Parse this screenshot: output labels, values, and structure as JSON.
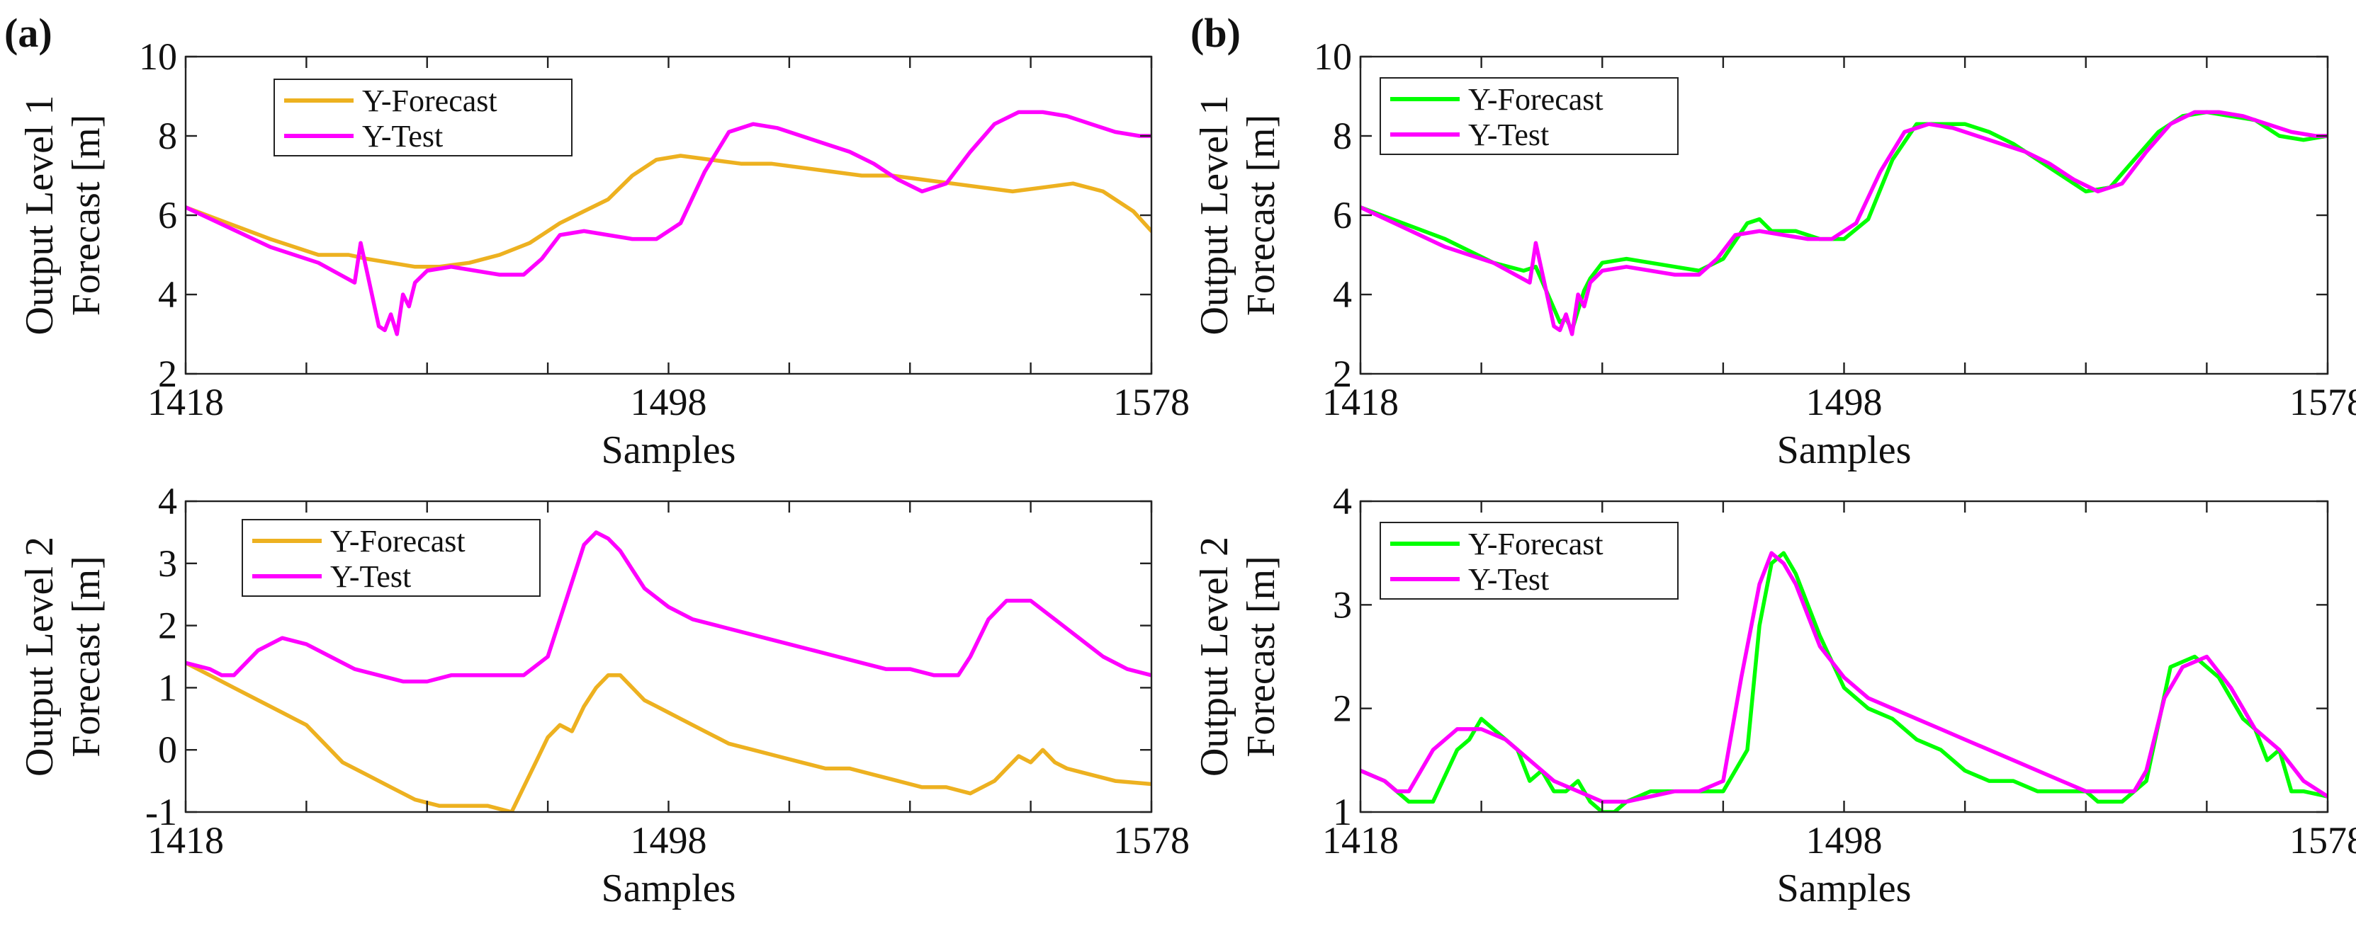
{
  "panels": [
    {
      "label": "(a)"
    },
    {
      "label": "(b)"
    }
  ],
  "chart_data": [
    {
      "type": "line",
      "panel": "(a)",
      "xlabel": "Samples",
      "ylabel": [
        "Output Level 1",
        "Forecast [m]"
      ],
      "xlim": [
        1418,
        1578
      ],
      "ylim": [
        2,
        10
      ],
      "xticks": [
        1418,
        1498,
        1578
      ],
      "xtick_labels": [
        "1418",
        "",
        "1498",
        "",
        "1578"
      ],
      "yticks": [
        2,
        4,
        6,
        8,
        10
      ],
      "ytick_labels": [
        "2",
        "4",
        "6",
        "8",
        "10"
      ],
      "minor_xticks": [
        1438,
        1458,
        1478,
        1518,
        1538,
        1558
      ],
      "legend_position": "top-left",
      "series": [
        {
          "name": "Y-Forecast",
          "color": "#EDB120",
          "x": [
            1418,
            1425,
            1432,
            1440,
            1445,
            1448,
            1452,
            1456,
            1460,
            1465,
            1470,
            1475,
            1480,
            1484,
            1488,
            1492,
            1496,
            1500,
            1505,
            1510,
            1515,
            1520,
            1525,
            1530,
            1535,
            1540,
            1545,
            1550,
            1555,
            1560,
            1565,
            1570,
            1575,
            1578
          ],
          "y": [
            6.2,
            5.8,
            5.4,
            5.0,
            5.0,
            4.9,
            4.8,
            4.7,
            4.7,
            4.8,
            5.0,
            5.3,
            5.8,
            6.1,
            6.4,
            7.0,
            7.4,
            7.5,
            7.4,
            7.3,
            7.3,
            7.2,
            7.1,
            7.0,
            7.0,
            6.9,
            6.8,
            6.7,
            6.6,
            6.7,
            6.8,
            6.6,
            6.1,
            5.6
          ]
        },
        {
          "name": "Y-Test",
          "color": "#FF00FF",
          "x": [
            1418,
            1425,
            1432,
            1440,
            1446,
            1447,
            1448,
            1450,
            1451,
            1452,
            1453,
            1454,
            1455,
            1456,
            1458,
            1462,
            1466,
            1470,
            1474,
            1477,
            1480,
            1484,
            1488,
            1492,
            1496,
            1500,
            1504,
            1508,
            1512,
            1516,
            1520,
            1524,
            1528,
            1532,
            1536,
            1540,
            1544,
            1548,
            1552,
            1556,
            1560,
            1564,
            1568,
            1572,
            1576,
            1578
          ],
          "y": [
            6.2,
            5.7,
            5.2,
            4.8,
            4.3,
            5.3,
            4.6,
            3.2,
            3.1,
            3.5,
            3.0,
            4.0,
            3.7,
            4.3,
            4.6,
            4.7,
            4.6,
            4.5,
            4.5,
            4.9,
            5.5,
            5.6,
            5.5,
            5.4,
            5.4,
            5.8,
            7.1,
            8.1,
            8.3,
            8.2,
            8.0,
            7.8,
            7.6,
            7.3,
            6.9,
            6.6,
            6.8,
            7.6,
            8.3,
            8.6,
            8.6,
            8.5,
            8.3,
            8.1,
            8.0,
            8.0
          ]
        }
      ]
    },
    {
      "type": "line",
      "panel": "(b)",
      "xlabel": "Samples",
      "ylabel": [
        "Output Level 1",
        "Forecast [m]"
      ],
      "xlim": [
        1418,
        1578
      ],
      "ylim": [
        2,
        10
      ],
      "xticks": [
        1418,
        1498,
        1578
      ],
      "xtick_labels": [
        "1418",
        "",
        "1498",
        "",
        "1578"
      ],
      "yticks": [
        2,
        4,
        6,
        8,
        10
      ],
      "ytick_labels": [
        "2",
        "4",
        "6",
        "8",
        "10"
      ],
      "minor_xticks": [
        1438,
        1458,
        1478,
        1518,
        1538,
        1558
      ],
      "legend_position": "top-left",
      "series": [
        {
          "name": "Y-Forecast",
          "color": "#00FF00",
          "x": [
            1418,
            1425,
            1432,
            1440,
            1445,
            1447,
            1449,
            1451,
            1452,
            1453,
            1454,
            1455,
            1456,
            1458,
            1462,
            1466,
            1470,
            1474,
            1478,
            1482,
            1484,
            1486,
            1490,
            1494,
            1498,
            1502,
            1506,
            1510,
            1514,
            1518,
            1522,
            1526,
            1530,
            1534,
            1538,
            1542,
            1546,
            1550,
            1554,
            1558,
            1562,
            1566,
            1570,
            1574,
            1578
          ],
          "y": [
            6.2,
            5.8,
            5.4,
            4.8,
            4.6,
            4.7,
            4.0,
            3.3,
            3.4,
            3.1,
            3.6,
            4.1,
            4.4,
            4.8,
            4.9,
            4.8,
            4.7,
            4.6,
            4.9,
            5.8,
            5.9,
            5.6,
            5.6,
            5.4,
            5.4,
            5.9,
            7.4,
            8.3,
            8.3,
            8.3,
            8.1,
            7.8,
            7.4,
            7.0,
            6.6,
            6.7,
            7.4,
            8.1,
            8.5,
            8.6,
            8.5,
            8.4,
            8.0,
            7.9,
            8.0
          ]
        },
        {
          "name": "Y-Test",
          "color": "#FF00FF",
          "x": [
            1418,
            1425,
            1432,
            1440,
            1446,
            1447,
            1448,
            1450,
            1451,
            1452,
            1453,
            1454,
            1455,
            1456,
            1458,
            1462,
            1466,
            1470,
            1474,
            1477,
            1480,
            1484,
            1488,
            1492,
            1496,
            1500,
            1504,
            1508,
            1512,
            1516,
            1520,
            1524,
            1528,
            1532,
            1536,
            1540,
            1544,
            1548,
            1552,
            1556,
            1560,
            1564,
            1568,
            1572,
            1576,
            1578
          ],
          "y": [
            6.2,
            5.7,
            5.2,
            4.8,
            4.3,
            5.3,
            4.6,
            3.2,
            3.1,
            3.5,
            3.0,
            4.0,
            3.7,
            4.3,
            4.6,
            4.7,
            4.6,
            4.5,
            4.5,
            4.9,
            5.5,
            5.6,
            5.5,
            5.4,
            5.4,
            5.8,
            7.1,
            8.1,
            8.3,
            8.2,
            8.0,
            7.8,
            7.6,
            7.3,
            6.9,
            6.6,
            6.8,
            7.6,
            8.3,
            8.6,
            8.6,
            8.5,
            8.3,
            8.1,
            8.0,
            8.0
          ]
        }
      ]
    },
    {
      "type": "line",
      "panel": "(a)",
      "xlabel": "Samples",
      "ylabel": [
        "Output Level 2",
        "Forecast [m]"
      ],
      "xlim": [
        1418,
        1578
      ],
      "ylim": [
        -1,
        4
      ],
      "xticks": [
        1418,
        1498,
        1578
      ],
      "xtick_labels": [
        "1418",
        "",
        "1498",
        "",
        "1578"
      ],
      "yticks": [
        -1,
        0,
        1,
        2,
        3,
        4
      ],
      "ytick_labels": [
        "-1",
        "0",
        "1",
        "2",
        "3",
        "4"
      ],
      "minor_xticks": [
        1438,
        1458,
        1478,
        1518,
        1538,
        1558
      ],
      "legend_position": "top-left",
      "series": [
        {
          "name": "Y-Forecast",
          "color": "#EDB120",
          "x": [
            1418,
            1422,
            1426,
            1430,
            1434,
            1436,
            1438,
            1440,
            1444,
            1448,
            1452,
            1456,
            1460,
            1464,
            1468,
            1472,
            1474,
            1476,
            1478,
            1480,
            1482,
            1484,
            1486,
            1488,
            1490,
            1492,
            1494,
            1496,
            1498,
            1500,
            1504,
            1508,
            1512,
            1516,
            1520,
            1524,
            1528,
            1532,
            1536,
            1540,
            1544,
            1548,
            1552,
            1554,
            1556,
            1558,
            1560,
            1562,
            1564,
            1568,
            1572,
            1578
          ],
          "y": [
            1.4,
            1.2,
            1.0,
            0.8,
            0.6,
            0.5,
            0.4,
            0.2,
            -0.2,
            -0.4,
            -0.6,
            -0.8,
            -0.9,
            -0.9,
            -0.9,
            -1.0,
            -0.6,
            -0.2,
            0.2,
            0.4,
            0.3,
            0.7,
            1.0,
            1.2,
            1.2,
            1.0,
            0.8,
            0.7,
            0.6,
            0.5,
            0.3,
            0.1,
            0.0,
            -0.1,
            -0.2,
            -0.3,
            -0.3,
            -0.4,
            -0.5,
            -0.6,
            -0.6,
            -0.7,
            -0.5,
            -0.3,
            -0.1,
            -0.2,
            0.0,
            -0.2,
            -0.3,
            -0.4,
            -0.5,
            -0.55
          ]
        },
        {
          "name": "Y-Test",
          "color": "#FF00FF",
          "x": [
            1418,
            1422,
            1424,
            1426,
            1430,
            1434,
            1438,
            1442,
            1446,
            1450,
            1454,
            1458,
            1462,
            1466,
            1470,
            1474,
            1478,
            1481,
            1484,
            1486,
            1488,
            1490,
            1492,
            1494,
            1498,
            1502,
            1506,
            1510,
            1514,
            1518,
            1522,
            1526,
            1530,
            1534,
            1538,
            1542,
            1544,
            1546,
            1548,
            1551,
            1554,
            1558,
            1562,
            1566,
            1570,
            1574,
            1578
          ],
          "y": [
            1.4,
            1.3,
            1.2,
            1.2,
            1.6,
            1.8,
            1.7,
            1.5,
            1.3,
            1.2,
            1.1,
            1.1,
            1.2,
            1.2,
            1.2,
            1.2,
            1.5,
            2.4,
            3.3,
            3.5,
            3.4,
            3.2,
            2.9,
            2.6,
            2.3,
            2.1,
            2.0,
            1.9,
            1.8,
            1.7,
            1.6,
            1.5,
            1.4,
            1.3,
            1.3,
            1.2,
            1.2,
            1.2,
            1.5,
            2.1,
            2.4,
            2.4,
            2.1,
            1.8,
            1.5,
            1.3,
            1.2
          ]
        }
      ]
    },
    {
      "type": "line",
      "panel": "(b)",
      "xlabel": "Samples",
      "ylabel": [
        "Output Level 2",
        "Forecast [m]"
      ],
      "xlim": [
        1418,
        1578
      ],
      "ylim": [
        1,
        4
      ],
      "xticks": [
        1418,
        1498,
        1578
      ],
      "xtick_labels": [
        "1418",
        "",
        "1498",
        "",
        "1578"
      ],
      "yticks": [
        1,
        2,
        3,
        4
      ],
      "ytick_labels": [
        "1",
        "2",
        "3",
        "4"
      ],
      "minor_xticks": [
        1438,
        1458,
        1478,
        1518,
        1538,
        1558
      ],
      "legend_position": "top-left",
      "series": [
        {
          "name": "Y-Forecast",
          "color": "#00FF00",
          "x": [
            1418,
            1422,
            1426,
            1430,
            1434,
            1436,
            1438,
            1440,
            1444,
            1446,
            1448,
            1450,
            1452,
            1454,
            1456,
            1458,
            1460,
            1462,
            1466,
            1470,
            1474,
            1478,
            1482,
            1484,
            1486,
            1488,
            1490,
            1494,
            1498,
            1502,
            1506,
            1510,
            1514,
            1518,
            1522,
            1526,
            1530,
            1534,
            1538,
            1540,
            1542,
            1544,
            1548,
            1552,
            1556,
            1560,
            1564,
            1566,
            1568,
            1570,
            1572,
            1574,
            1578
          ],
          "y": [
            1.4,
            1.3,
            1.1,
            1.1,
            1.6,
            1.7,
            1.9,
            1.8,
            1.6,
            1.3,
            1.4,
            1.2,
            1.2,
            1.3,
            1.1,
            1.0,
            1.0,
            1.1,
            1.2,
            1.2,
            1.2,
            1.2,
            1.6,
            2.8,
            3.4,
            3.5,
            3.3,
            2.7,
            2.2,
            2.0,
            1.9,
            1.7,
            1.6,
            1.4,
            1.3,
            1.3,
            1.2,
            1.2,
            1.2,
            1.1,
            1.1,
            1.1,
            1.3,
            2.4,
            2.5,
            2.3,
            1.9,
            1.8,
            1.5,
            1.6,
            1.2,
            1.2,
            1.15
          ]
        },
        {
          "name": "Y-Test",
          "color": "#FF00FF",
          "x": [
            1418,
            1422,
            1424,
            1426,
            1430,
            1434,
            1438,
            1442,
            1446,
            1450,
            1454,
            1458,
            1462,
            1466,
            1470,
            1474,
            1478,
            1481,
            1484,
            1486,
            1488,
            1490,
            1492,
            1494,
            1498,
            1502,
            1506,
            1510,
            1514,
            1518,
            1522,
            1526,
            1530,
            1534,
            1538,
            1542,
            1544,
            1546,
            1548,
            1551,
            1554,
            1558,
            1562,
            1566,
            1570,
            1574,
            1578
          ],
          "y": [
            1.4,
            1.3,
            1.2,
            1.2,
            1.6,
            1.8,
            1.8,
            1.7,
            1.5,
            1.3,
            1.2,
            1.1,
            1.1,
            1.15,
            1.2,
            1.2,
            1.3,
            2.3,
            3.2,
            3.5,
            3.4,
            3.2,
            2.9,
            2.6,
            2.3,
            2.1,
            2.0,
            1.9,
            1.8,
            1.7,
            1.6,
            1.5,
            1.4,
            1.3,
            1.2,
            1.2,
            1.2,
            1.2,
            1.4,
            2.1,
            2.4,
            2.5,
            2.2,
            1.8,
            1.6,
            1.3,
            1.15
          ]
        }
      ]
    }
  ]
}
